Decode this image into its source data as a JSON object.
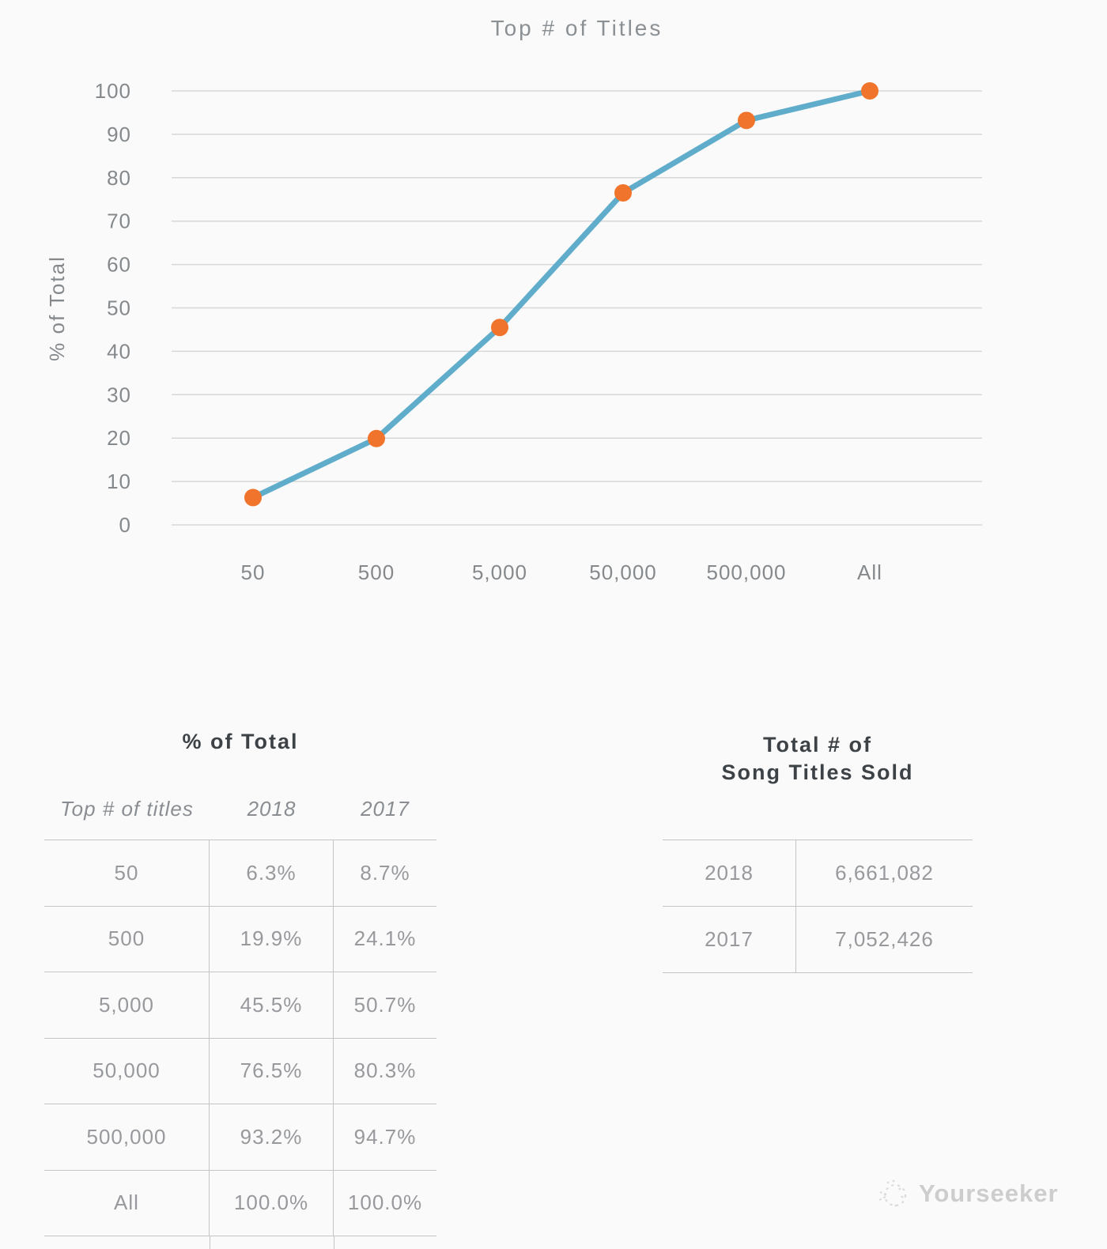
{
  "chart_data": {
    "type": "line",
    "title": "Top # of Titles",
    "xlabel": "",
    "ylabel": "% of Total",
    "categories": [
      "50",
      "500",
      "5,000",
      "50,000",
      "500,000",
      "All"
    ],
    "series": [
      {
        "name": "2018",
        "values": [
          6.3,
          19.9,
          45.5,
          76.5,
          93.2,
          100.0
        ]
      }
    ],
    "ylim": [
      0,
      100
    ],
    "y_ticks": [
      0,
      10,
      20,
      30,
      40,
      50,
      60,
      70,
      80,
      90,
      100
    ],
    "grid": true,
    "legend": "none",
    "line_color": "#5faccb",
    "marker_color": "#f0742c",
    "gridline_color": "#d7d7d7"
  },
  "percent_table": {
    "title": "% of Total",
    "columns": [
      "Top # of titles",
      "2018",
      "2017"
    ],
    "rows": [
      [
        "50",
        "6.3%",
        "8.7%"
      ],
      [
        "500",
        "19.9%",
        "24.1%"
      ],
      [
        "5,000",
        "45.5%",
        "50.7%"
      ],
      [
        "50,000",
        "76.5%",
        "80.3%"
      ],
      [
        "500,000",
        "93.2%",
        "94.7%"
      ],
      [
        "All",
        "100.0%",
        "100.0%"
      ]
    ]
  },
  "totals_table": {
    "title_line1": "Total # of",
    "title_line2": "Song Titles Sold",
    "rows": [
      [
        "2018",
        "6,661,082"
      ],
      [
        "2017",
        "7,052,426"
      ]
    ]
  },
  "watermark": {
    "label": "Yourseeker"
  }
}
